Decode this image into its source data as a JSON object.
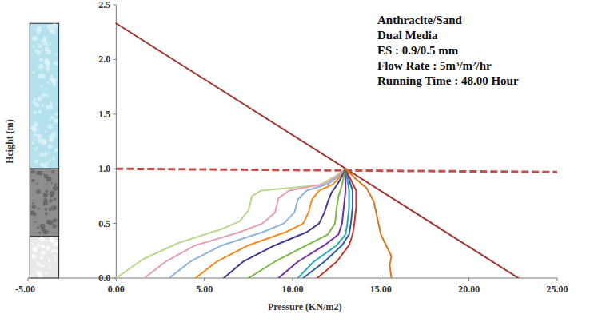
{
  "chart_data": {
    "type": "line",
    "x_label": "Pressure (KN/m2)",
    "y_label": "Height (m)",
    "annotations": [
      "Anthracite/Sand",
      "Dual Media",
      "ES : 0.9/0.5 mm",
      "Flow Rate : 5m³/m²/hr",
      "Running Time  : 48.00 Hour"
    ],
    "xlim": [
      -5,
      25
    ],
    "ylim": [
      0,
      2.5
    ],
    "xticks": [
      {
        "value": -5,
        "label": "-5.00"
      },
      {
        "value": 0,
        "label": "0.00"
      },
      {
        "value": 5,
        "label": "5.00"
      },
      {
        "value": 10,
        "label": "10.00"
      },
      {
        "value": 15,
        "label": "15.00"
      },
      {
        "value": 20,
        "label": "20.00"
      },
      {
        "value": 25,
        "label": "25.00"
      }
    ],
    "yticks": [
      {
        "value": 0,
        "label": "0.0"
      },
      {
        "value": 0.5,
        "label": "0.5"
      },
      {
        "value": 1,
        "label": "1.0"
      },
      {
        "value": 1.5,
        "label": "1.5"
      },
      {
        "value": 2,
        "label": "2.0"
      },
      {
        "value": 2.5,
        "label": "2.5"
      }
    ],
    "grid": false,
    "layers": [
      {
        "top": 2.33,
        "bottom": 1.0,
        "color": "#b3e2ee"
      },
      {
        "top": 1.0,
        "bottom": 0.38,
        "color": "#8e8e8e"
      },
      {
        "top": 0.38,
        "bottom": 0,
        "color": "#e9e9e9"
      }
    ],
    "series": [
      {
        "color": "#a0322f",
        "line_style": "solid",
        "x": [
          0,
          22.8
        ],
        "values": [
          2.33,
          0
        ]
      },
      {
        "color": "#c0504d",
        "line_style": "dashed",
        "x": [
          0,
          25
        ],
        "values": [
          1.0,
          0.97
        ]
      },
      {
        "color": "#b8d98c",
        "line_style": "solid",
        "x": [
          13,
          12.4,
          11.5,
          8.2,
          7.7,
          7.5,
          7.0,
          6.0,
          3.5,
          1.5,
          0.0
        ],
        "values": [
          1.0,
          0.93,
          0.85,
          0.8,
          0.75,
          0.62,
          0.52,
          0.45,
          0.32,
          0.17,
          0.0
        ]
      },
      {
        "color": "#e6a0b4",
        "line_style": "solid",
        "x": [
          13,
          12.5,
          11.8,
          9.8,
          9.2,
          9.0,
          8.3,
          7.0,
          4.5,
          2.8,
          1.6
        ],
        "values": [
          1.0,
          0.93,
          0.86,
          0.8,
          0.73,
          0.6,
          0.5,
          0.42,
          0.3,
          0.15,
          0.0
        ]
      },
      {
        "color": "#8fb4dc",
        "line_style": "solid",
        "x": [
          13,
          12.6,
          12.0,
          10.8,
          10.3,
          10.1,
          9.5,
          8.3,
          6.0,
          4.2,
          3.0
        ],
        "values": [
          1.0,
          0.93,
          0.86,
          0.8,
          0.72,
          0.6,
          0.5,
          0.42,
          0.3,
          0.15,
          0.0
        ]
      },
      {
        "color": "#f28a1e",
        "line_style": "solid",
        "x": [
          13,
          12.7,
          12.3,
          11.5,
          11.1,
          10.9,
          10.6,
          9.6,
          7.5,
          5.7,
          4.5
        ],
        "values": [
          1.0,
          0.93,
          0.86,
          0.8,
          0.72,
          0.6,
          0.5,
          0.42,
          0.3,
          0.15,
          0.0
        ]
      },
      {
        "color": "#3f3a8f",
        "line_style": "solid",
        "x": [
          13,
          12.8,
          12.5,
          12.2,
          12.0,
          11.8,
          11.5,
          10.8,
          9.0,
          7.2,
          6.1
        ],
        "values": [
          1.0,
          0.93,
          0.85,
          0.78,
          0.7,
          0.6,
          0.5,
          0.42,
          0.3,
          0.15,
          0.0
        ]
      },
      {
        "color": "#7ab648",
        "line_style": "solid",
        "x": [
          13,
          12.9,
          12.8,
          12.6,
          12.5,
          12.4,
          12.0,
          10.8,
          9.0,
          7.5
        ],
        "values": [
          1.0,
          0.93,
          0.85,
          0.75,
          0.65,
          0.5,
          0.4,
          0.3,
          0.15,
          0.0
        ]
      },
      {
        "color": "#7030a0",
        "line_style": "solid",
        "x": [
          13,
          13.0,
          13.0,
          12.9,
          12.8,
          12.6,
          11.8,
          10.3,
          9.2
        ],
        "values": [
          1.0,
          0.9,
          0.8,
          0.65,
          0.5,
          0.4,
          0.3,
          0.15,
          0.0
        ]
      },
      {
        "color": "#2aa7b8",
        "line_style": "solid",
        "x": [
          13,
          13.1,
          13.2,
          13.2,
          13.1,
          13.0,
          12.5,
          11.2,
          10.3
        ],
        "values": [
          1.0,
          0.9,
          0.8,
          0.65,
          0.5,
          0.4,
          0.3,
          0.15,
          0.0
        ]
      },
      {
        "color": "#2f5fa8",
        "line_style": "solid",
        "x": [
          13,
          13.2,
          13.4,
          13.4,
          13.3,
          13.2,
          12.8,
          11.8,
          10.6
        ],
        "values": [
          1.0,
          0.9,
          0.8,
          0.65,
          0.5,
          0.4,
          0.3,
          0.15,
          0.0
        ]
      },
      {
        "color": "#c0392b",
        "line_style": "solid",
        "x": [
          13,
          13.3,
          13.6,
          13.6,
          13.5,
          13.4,
          13.2,
          12.5,
          11.4
        ],
        "values": [
          1.0,
          0.9,
          0.8,
          0.65,
          0.5,
          0.4,
          0.3,
          0.15,
          0.0
        ]
      },
      {
        "color": "#d9791f",
        "line_style": "solid",
        "x": [
          13,
          13.5,
          14.2,
          14.6,
          14.8,
          15.0,
          15.3,
          15.6,
          15.5,
          15.6
        ],
        "values": [
          1.0,
          0.92,
          0.82,
          0.7,
          0.55,
          0.4,
          0.3,
          0.2,
          0.12,
          0.0
        ]
      }
    ]
  }
}
